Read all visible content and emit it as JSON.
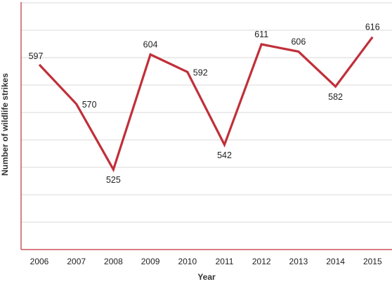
{
  "chart_data": {
    "type": "line",
    "title": "",
    "xlabel": "Year",
    "ylabel": "Number of wildlife strikes",
    "categories": [
      "2006",
      "2007",
      "2008",
      "2009",
      "2010",
      "2011",
      "2012",
      "2013",
      "2014",
      "2015"
    ],
    "series": [
      {
        "values": [
          597,
          570,
          525,
          604,
          592,
          542,
          611,
          606,
          582,
          616
        ],
        "color": "#c0303a"
      }
    ],
    "ylim": [
      470,
      640
    ],
    "grid": true,
    "show_y_tick_labels": false,
    "data_label_placement": [
      "above",
      "right",
      "below",
      "above",
      "right",
      "below",
      "above",
      "above",
      "below",
      "above"
    ],
    "colors": {
      "line": "#c0303a",
      "axis": "#c0303a",
      "grid": "#d9d9d9"
    }
  }
}
